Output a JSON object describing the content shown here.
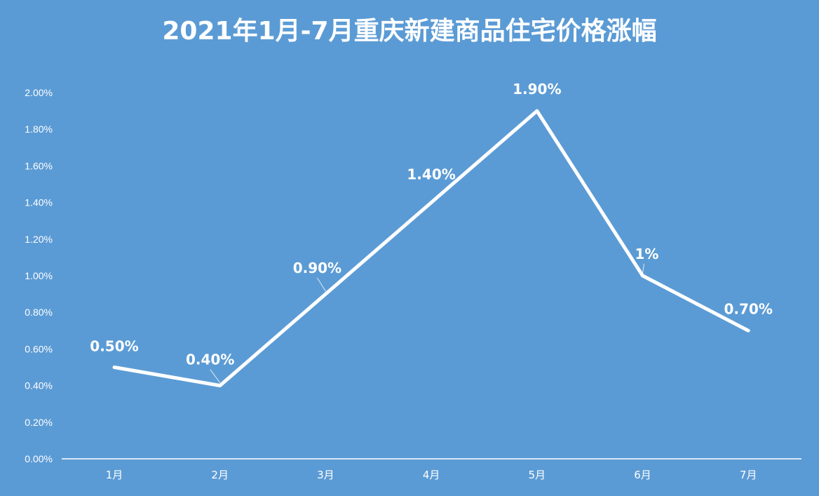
{
  "chart_data": {
    "type": "line",
    "title": "2021年1月-7月重庆新建商品住宅价格涨幅",
    "categories": [
      "1月",
      "2月",
      "3月",
      "4月",
      "5月",
      "6月",
      "7月"
    ],
    "values": [
      0.5,
      0.4,
      0.9,
      1.4,
      1.9,
      1.0,
      0.7
    ],
    "data_labels": [
      "0.50%",
      "0.40%",
      "0.90%",
      "1.40%",
      "1.90%",
      "1%",
      "0.70%"
    ],
    "y_ticks": [
      "0.00%",
      "0.20%",
      "0.40%",
      "0.60%",
      "0.80%",
      "1.00%",
      "1.20%",
      "1.40%",
      "1.60%",
      "1.80%",
      "2.00%"
    ],
    "ylim": [
      0,
      2.0
    ],
    "grid": false,
    "legend": "none",
    "colors": {
      "background": "#5b9bd5",
      "line": "#ffffff"
    }
  }
}
